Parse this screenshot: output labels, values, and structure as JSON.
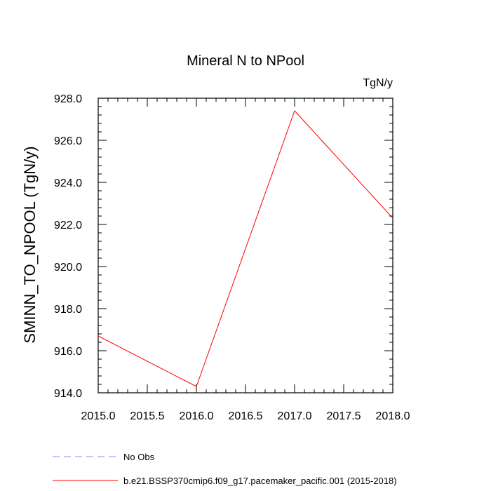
{
  "chart_data": {
    "type": "line",
    "title": "Mineral N to NPool",
    "units": "TgN/y",
    "ylabel": "SMINN_TO_NPOOL  (TgN/y)",
    "xlabel": "",
    "xlim": [
      2015.0,
      2018.0
    ],
    "ylim": [
      914.0,
      928.0
    ],
    "xticks": [
      2015.0,
      2015.5,
      2016.0,
      2016.5,
      2017.0,
      2017.5,
      2018.0
    ],
    "xtick_labels": [
      "2015.0",
      "2015.5",
      "2016.0",
      "2016.5",
      "2017.0",
      "2017.5",
      "2018.0"
    ],
    "yticks": [
      914.0,
      916.0,
      918.0,
      920.0,
      922.0,
      924.0,
      926.0,
      928.0
    ],
    "ytick_labels": [
      "914.0",
      "916.0",
      "918.0",
      "920.0",
      "922.0",
      "924.0",
      "926.0",
      "928.0"
    ],
    "grid": false,
    "legend_position": "bottom",
    "series": [
      {
        "name": "b.e21.BSSP370cmip6.f09_g17.pacemaker_pacific.001 (2015-2018)",
        "color": "#ff0000",
        "dash": "solid",
        "x": [
          2015.0,
          2016.0,
          2017.0,
          2018.0
        ],
        "y": [
          916.7,
          914.3,
          927.4,
          922.3
        ]
      }
    ],
    "legend": [
      {
        "label": "No Obs",
        "color": "#8a8aff",
        "dash": "dashed"
      },
      {
        "label": "b.e21.BSSP370cmip6.f09_g17.pacemaker_pacific.001 (2015-2018)",
        "color": "#ff0000",
        "dash": "solid"
      }
    ]
  }
}
